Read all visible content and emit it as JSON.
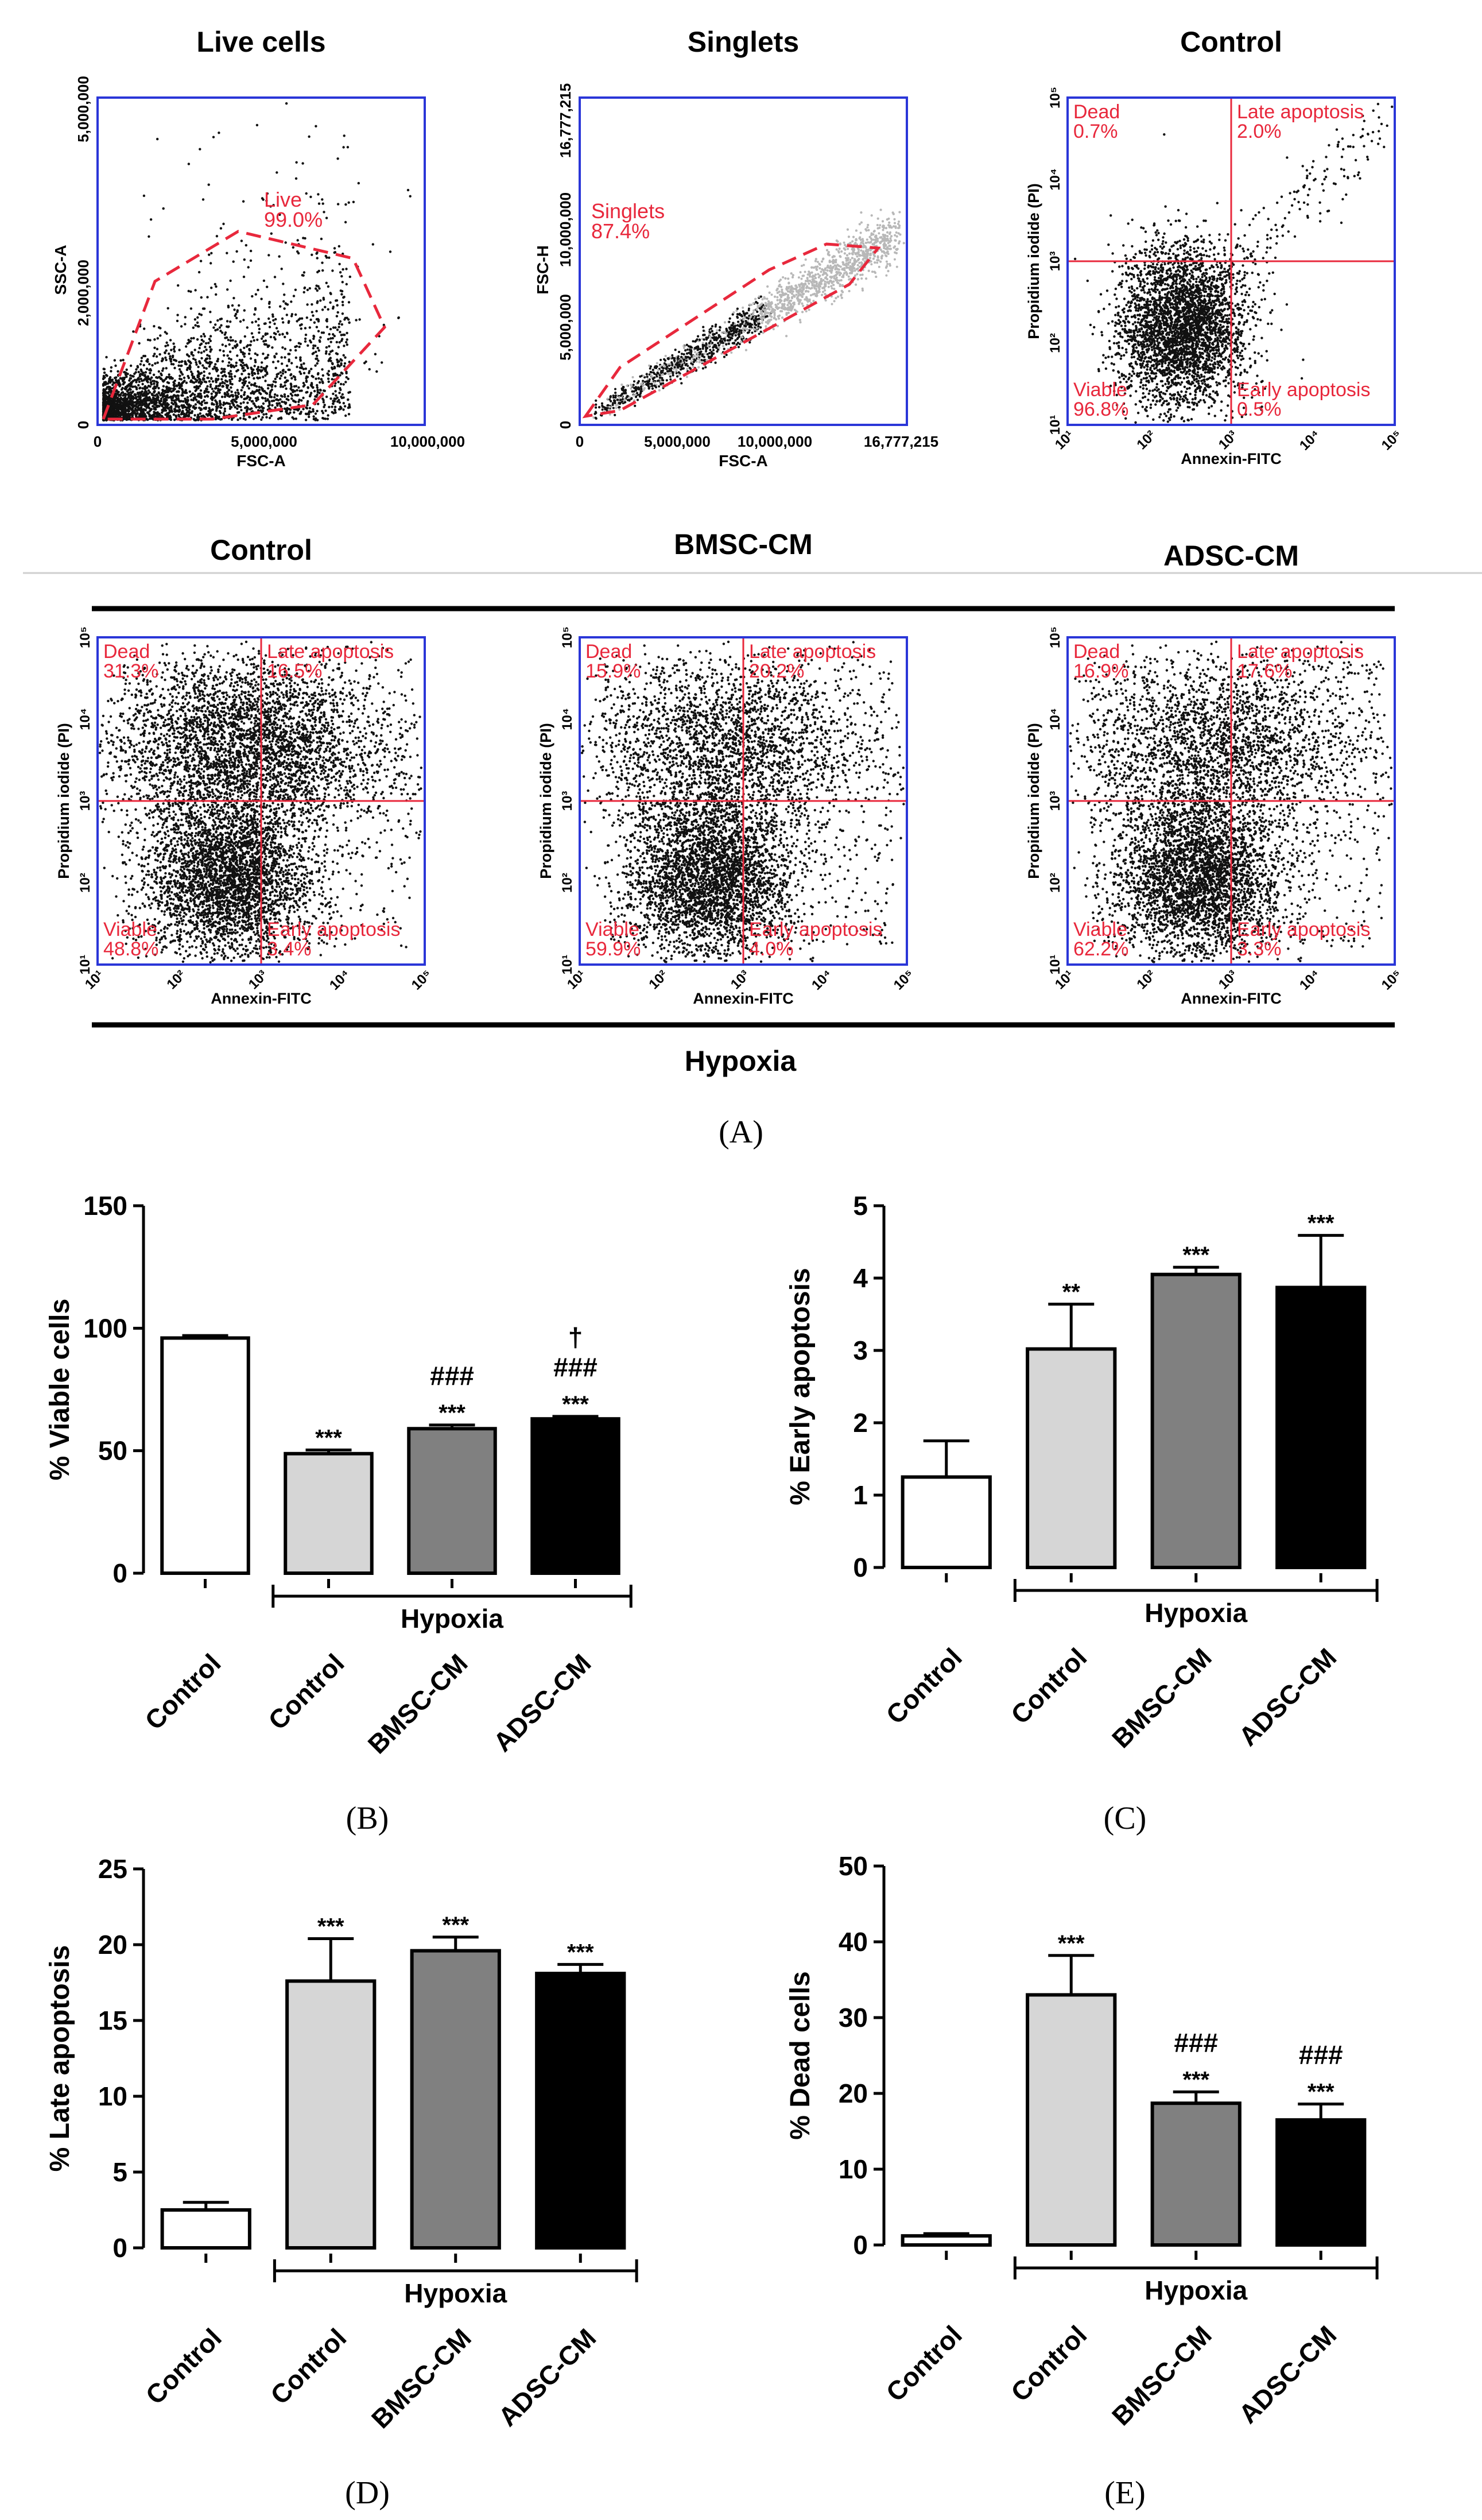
{
  "colors": {
    "frame": "#2a36d8",
    "gate": "#e8283c",
    "dots": "#111111",
    "bar_edge": "#000000"
  },
  "panel_labels": {
    "A": "(A)",
    "B": "(B)",
    "C": "(C)",
    "D": "(D)",
    "E": "(E)"
  },
  "flow": {
    "row1": [
      {
        "title": "Live cells",
        "xlabel": "FSC-A",
        "ylabel": "SSC-A",
        "xticks": [
          "0",
          "5,000,000",
          "10,000,000"
        ],
        "yticks": [
          "0",
          "2,000,000",
          "5,000,000"
        ],
        "gate": [
          "Live",
          "99.0%"
        ]
      },
      {
        "title": "Singlets",
        "xlabel": "FSC-A",
        "ylabel": "FSC-H",
        "xticks": [
          "0",
          "5,000,000",
          "10,000,000",
          "16,777,215"
        ],
        "yticks": [
          "0",
          "5,000,000",
          "10,000,000",
          "16,777,215"
        ],
        "gate": [
          "Singlets",
          "87.4%"
        ]
      },
      {
        "title": "Control",
        "xlabel": "Annexin-FITC",
        "ylabel": "Propidium iodide (PI)",
        "quads": {
          "dead": [
            "Dead",
            "0.7%"
          ],
          "late": [
            "Late apoptosis",
            "2.0%"
          ],
          "viable": [
            "Viable",
            "96.8%"
          ],
          "early": [
            "Early apoptosis",
            "0.5%"
          ]
        }
      }
    ],
    "row2": [
      {
        "title": "Control",
        "xlabel": "Annexin-FITC",
        "ylabel": "Propidium iodide (PI)",
        "quads": {
          "dead": [
            "Dead",
            "31.3%"
          ],
          "late": [
            "Late apoptosis",
            "16.5%"
          ],
          "viable": [
            "Viable",
            "48.8%"
          ],
          "early": [
            "Early apoptosis",
            "3.4%"
          ]
        }
      },
      {
        "title": "BMSC-CM",
        "xlabel": "Annexin-FITC",
        "ylabel": "Propidium iodide (PI)",
        "quads": {
          "dead": [
            "Dead",
            "15.9%"
          ],
          "late": [
            "Late apoptosis",
            "20.2%"
          ],
          "viable": [
            "Viable",
            "59.9%"
          ],
          "early": [
            "Early apoptosis",
            "4.0%"
          ]
        }
      },
      {
        "title": "ADSC-CM",
        "xlabel": "Annexin-FITC",
        "ylabel": "Propidium iodide (PI)",
        "quads": {
          "dead": [
            "Dead",
            "16.9%"
          ],
          "late": [
            "Late apoptosis",
            "17.6%"
          ],
          "viable": [
            "Viable",
            "62.2%"
          ],
          "early": [
            "Early apoptosis",
            "3.3%"
          ]
        }
      }
    ],
    "log_ticks": [
      "10¹",
      "10²",
      "10³",
      "10⁴",
      "10⁵"
    ],
    "hypoxia_label": "Hypoxia"
  },
  "chart_data": [
    {
      "id": "B",
      "type": "bar",
      "ylabel": "% Viable cells",
      "ylim": [
        0,
        150
      ],
      "yticks": [
        0,
        50,
        100,
        150
      ],
      "categories": [
        "Control",
        "Control",
        "BMSC-CM",
        "ADSC-CM"
      ],
      "values": [
        96,
        48.8,
        59,
        63
      ],
      "errors": [
        1,
        1.5,
        1.5,
        1
      ],
      "fills": [
        "#ffffff",
        "#d6d6d6",
        "#808080",
        "#000000"
      ],
      "annotations": [
        [],
        [
          "***"
        ],
        [
          "###",
          "***"
        ],
        [
          "†",
          "###",
          "***"
        ]
      ],
      "group_label": "Hypoxia"
    },
    {
      "id": "C",
      "type": "bar",
      "ylabel": "% Early apoptosis",
      "ylim": [
        0,
        5
      ],
      "yticks": [
        0,
        1,
        2,
        3,
        4,
        5
      ],
      "categories": [
        "Control",
        "Control",
        "BMSC-CM",
        "ADSC-CM"
      ],
      "values": [
        1.25,
        3.02,
        4.05,
        3.87
      ],
      "errors": [
        0.5,
        0.62,
        0.1,
        0.72
      ],
      "fills": [
        "#ffffff",
        "#d6d6d6",
        "#808080",
        "#000000"
      ],
      "annotations": [
        [],
        [
          "**"
        ],
        [
          "***"
        ],
        [
          "***"
        ]
      ],
      "group_label": "Hypoxia"
    },
    {
      "id": "D",
      "type": "bar",
      "ylabel": "% Late apoptosis",
      "ylim": [
        0,
        25
      ],
      "yticks": [
        0,
        5,
        10,
        15,
        20,
        25
      ],
      "categories": [
        "Control",
        "Control",
        "BMSC-CM",
        "ADSC-CM"
      ],
      "values": [
        2.5,
        17.6,
        19.6,
        18.1
      ],
      "errors": [
        0.5,
        2.8,
        0.9,
        0.6
      ],
      "fills": [
        "#ffffff",
        "#d6d6d6",
        "#808080",
        "#000000"
      ],
      "annotations": [
        [],
        [
          "***"
        ],
        [
          "***"
        ],
        [
          "***"
        ]
      ],
      "group_label": "Hypoxia"
    },
    {
      "id": "E",
      "type": "bar",
      "ylabel": "% Dead cells",
      "ylim": [
        0,
        50
      ],
      "yticks": [
        0,
        10,
        20,
        30,
        40,
        50
      ],
      "categories": [
        "Control",
        "Control",
        "BMSC-CM",
        "ADSC-CM"
      ],
      "values": [
        1.2,
        33,
        18.7,
        16.5
      ],
      "errors": [
        0.3,
        5.2,
        1.5,
        2.1
      ],
      "fills": [
        "#ffffff",
        "#d6d6d6",
        "#808080",
        "#000000"
      ],
      "annotations": [
        [],
        [
          "***"
        ],
        [
          "###",
          "***"
        ],
        [
          "###",
          "***"
        ]
      ],
      "group_label": "Hypoxia"
    }
  ]
}
